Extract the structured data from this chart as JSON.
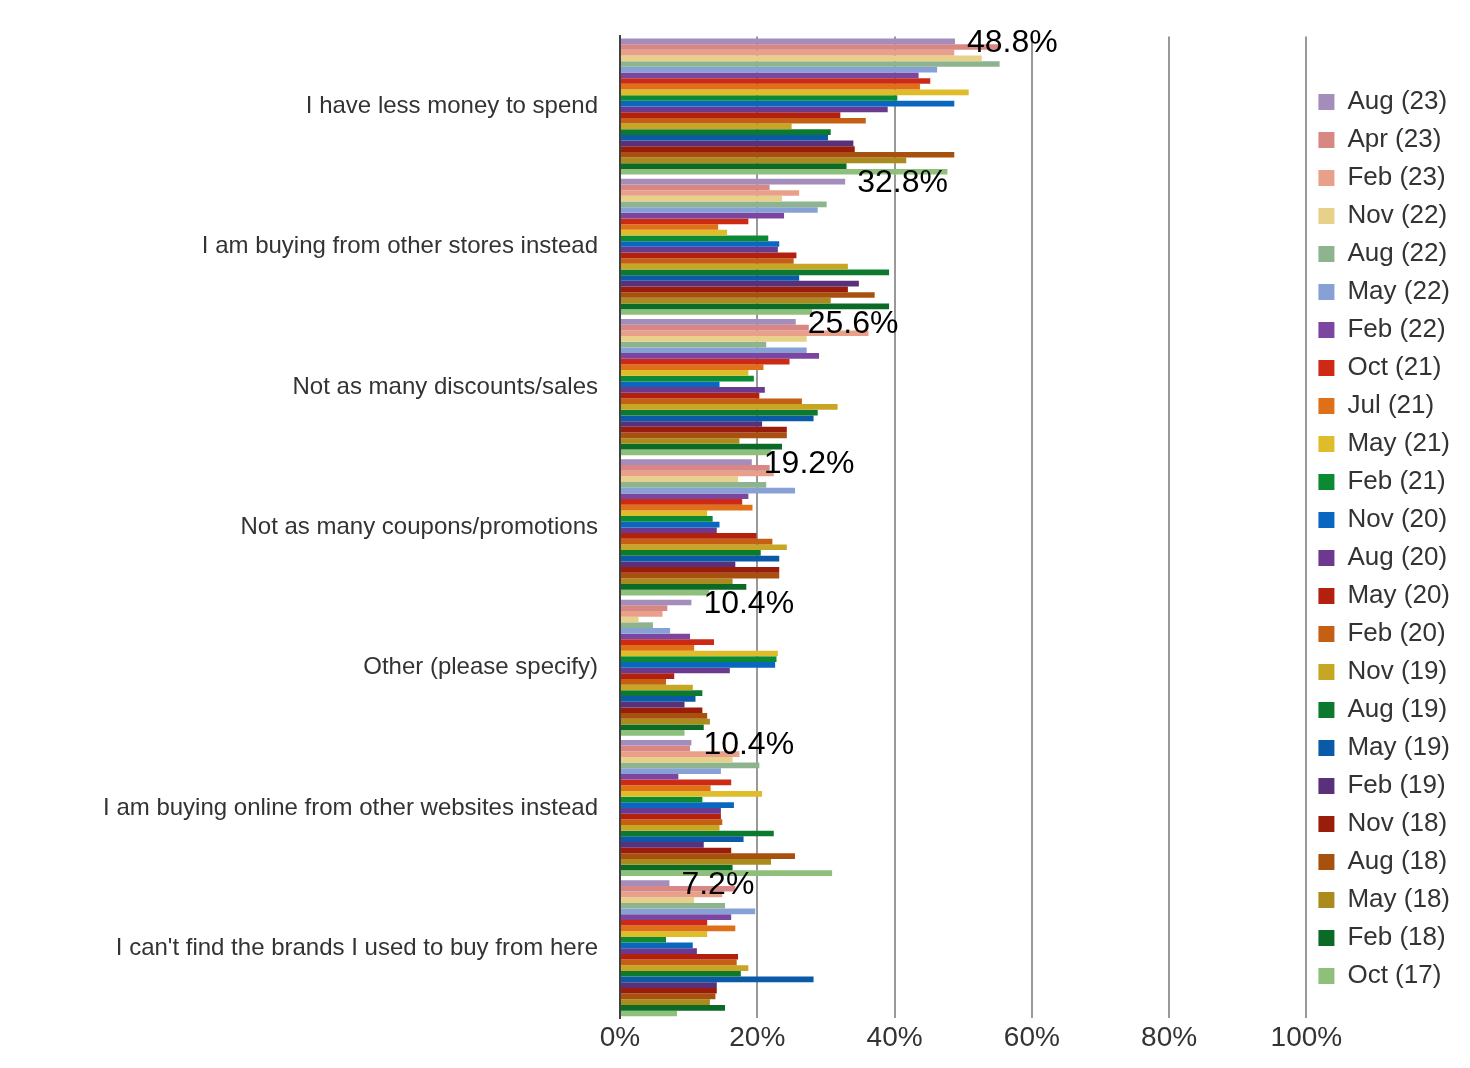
{
  "chart_data": {
    "type": "bar",
    "orientation": "horizontal",
    "categories": [
      "I have less money to spend",
      "I am buying from other stores instead",
      "Not as many discounts/sales",
      "Not as many coupons/promotions",
      "Other (please specify)",
      "I am buying online from other websites instead",
      "I can't find the brands I used to buy from here"
    ],
    "xlim": [
      0,
      100
    ],
    "xticks": [
      {
        "value": 0,
        "label": "0%"
      },
      {
        "value": 20,
        "label": "20%"
      },
      {
        "value": 40,
        "label": "40%"
      },
      {
        "value": 60,
        "label": "60%"
      },
      {
        "value": 80,
        "label": "80%"
      },
      {
        "value": 100,
        "label": "100%"
      }
    ],
    "grid": "x",
    "legend": "right",
    "series": [
      {
        "name": "Aug (23)",
        "color": "#a48cbb",
        "values": [
          48.8,
          32.8,
          25.6,
          19.2,
          10.4,
          10.4,
          7.2
        ],
        "value_labels": [
          "48.8%",
          "32.8%",
          "25.6%",
          "19.2%",
          "10.4%",
          "10.4%",
          "7.2%"
        ]
      },
      {
        "name": "Apr (23)",
        "color": "#d98785",
        "values": [
          55.2,
          21.8,
          27.5,
          21.8,
          6.9,
          10.2,
          16.8
        ]
      },
      {
        "name": "Feb (23)",
        "color": "#e8a08a",
        "values": [
          48.7,
          26.1,
          36.2,
          22.4,
          6.2,
          17.4,
          14.9
        ]
      },
      {
        "name": "Nov (22)",
        "color": "#e6d08a",
        "values": [
          52.7,
          23.6,
          27.2,
          17.2,
          2.7,
          16.4,
          10.8
        ]
      },
      {
        "name": "Aug (22)",
        "color": "#8db38f",
        "values": [
          55.3,
          30.1,
          21.3,
          21.3,
          4.8,
          20.3,
          15.3
        ]
      },
      {
        "name": "May (22)",
        "color": "#87a1d6",
        "values": [
          46.2,
          28.8,
          27.2,
          25.5,
          7.3,
          14.7,
          19.7
        ]
      },
      {
        "name": "Feb (22)",
        "color": "#7c45a0",
        "values": [
          43.5,
          23.9,
          29.0,
          18.7,
          10.2,
          8.5,
          16.2
        ]
      },
      {
        "name": "Oct (21)",
        "color": "#cc2a14",
        "values": [
          45.2,
          18.7,
          24.7,
          17.8,
          13.7,
          16.2,
          12.7
        ]
      },
      {
        "name": "Jul (21)",
        "color": "#e07018",
        "values": [
          43.7,
          14.3,
          20.9,
          19.3,
          10.8,
          13.2,
          16.8
        ]
      },
      {
        "name": "May (21)",
        "color": "#dfbd2a",
        "values": [
          50.8,
          15.6,
          18.7,
          12.7,
          23.0,
          20.7,
          12.7
        ]
      },
      {
        "name": "Feb (21)",
        "color": "#0b8a33",
        "values": [
          40.4,
          21.6,
          19.5,
          13.5,
          22.8,
          12.0,
          6.7
        ]
      },
      {
        "name": "Nov (20)",
        "color": "#0a67c0",
        "values": [
          48.7,
          23.2,
          14.5,
          14.5,
          22.6,
          16.6,
          10.6
        ]
      },
      {
        "name": "Aug (20)",
        "color": "#6b3a8e",
        "values": [
          39.0,
          23.0,
          21.1,
          14.1,
          16.0,
          14.7,
          11.2
        ]
      },
      {
        "name": "May (20)",
        "color": "#b3200e",
        "values": [
          32.1,
          25.7,
          20.3,
          19.9,
          7.9,
          14.7,
          17.2
        ]
      },
      {
        "name": "Feb (20)",
        "color": "#c45f14",
        "values": [
          35.8,
          25.3,
          26.5,
          22.2,
          6.7,
          14.9,
          17.0
        ]
      },
      {
        "name": "Nov (19)",
        "color": "#c7a624",
        "values": [
          25.0,
          33.2,
          31.7,
          24.3,
          10.6,
          14.5,
          18.7
        ]
      },
      {
        "name": "Aug (19)",
        "color": "#0b7a2f",
        "values": [
          30.7,
          39.2,
          28.8,
          20.5,
          12.0,
          22.4,
          17.6
        ]
      },
      {
        "name": "May (19)",
        "color": "#0b5aa8",
        "values": [
          30.3,
          26.1,
          28.2,
          23.2,
          11.0,
          18.0,
          28.2
        ]
      },
      {
        "name": "Feb (19)",
        "color": "#59307a",
        "values": [
          34.0,
          34.8,
          20.7,
          16.8,
          9.4,
          12.2,
          14.1
        ]
      },
      {
        "name": "Nov (18)",
        "color": "#9a1c0a",
        "values": [
          34.2,
          33.2,
          24.3,
          23.2,
          12.0,
          16.2,
          14.1
        ]
      },
      {
        "name": "Aug (18)",
        "color": "#a8500e",
        "values": [
          48.7,
          37.1,
          24.3,
          23.2,
          12.7,
          25.5,
          13.9
        ]
      },
      {
        "name": "May (18)",
        "color": "#aa8c1e",
        "values": [
          41.7,
          30.7,
          17.4,
          16.4,
          13.1,
          22.0,
          13.1
        ]
      },
      {
        "name": "Feb (18)",
        "color": "#0a6a26",
        "values": [
          33.0,
          39.2,
          23.6,
          18.4,
          12.2,
          16.4,
          15.3
        ]
      },
      {
        "name": "Oct (17)",
        "color": "#8ec07c",
        "values": [
          47.7,
          28.0,
          22.0,
          13.0,
          9.4,
          30.9,
          8.3
        ]
      }
    ]
  }
}
